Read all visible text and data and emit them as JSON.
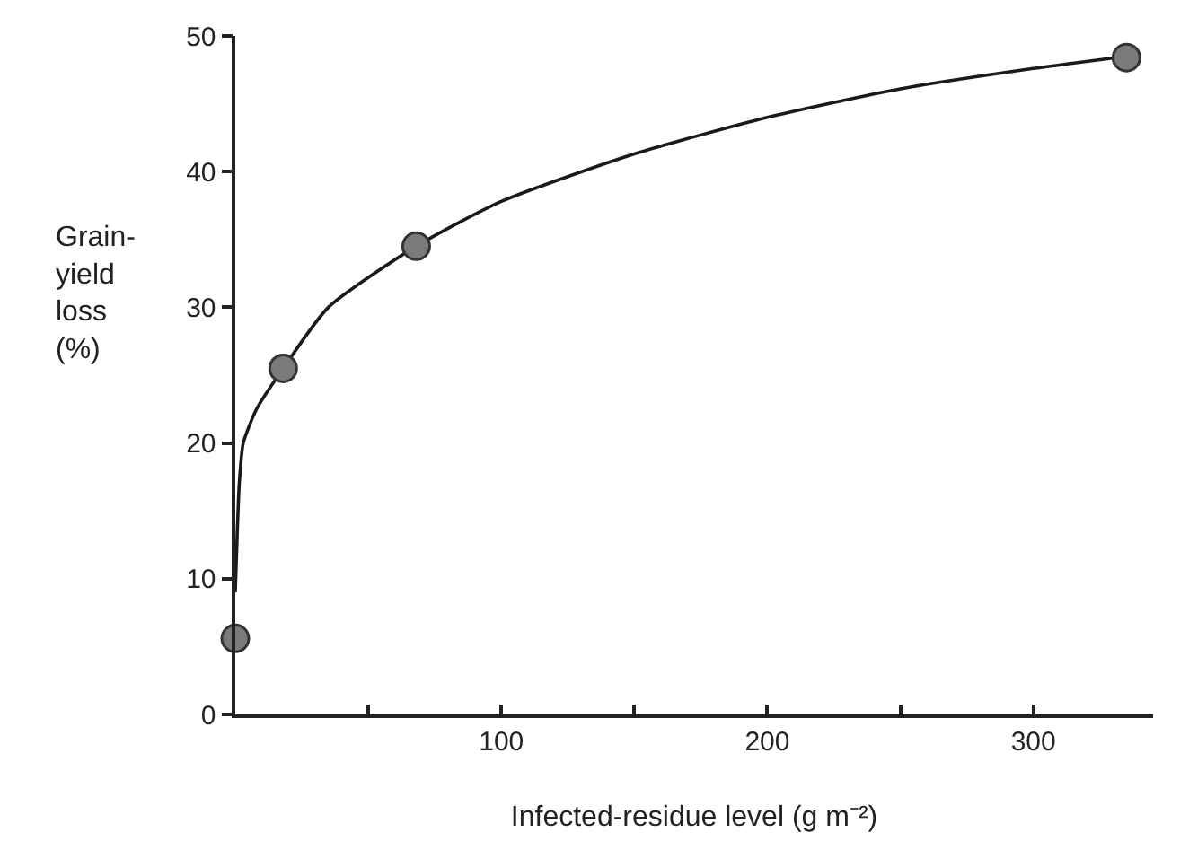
{
  "chart_data": {
    "type": "scatter",
    "xlabel": "Infected-residue level (g m⁻²)",
    "ylabel": "Grain-\nyield\nloss\n(%)",
    "xlim": [
      0,
      345
    ],
    "ylim": [
      0,
      50
    ],
    "xticks": [
      {
        "value": 50,
        "label": null
      },
      100,
      {
        "value": 150,
        "label": null
      },
      200,
      {
        "value": 250,
        "label": null
      },
      300
    ],
    "yticks": [
      0,
      10,
      20,
      30,
      40,
      50
    ],
    "series": [
      {
        "type": "line",
        "color": "#1a1a1a",
        "marker": "none",
        "line_style": "solid",
        "x": [
          0,
          0.5,
          1.5,
          3,
          8,
          18,
          35,
          68,
          100,
          150,
          200,
          250,
          300,
          335
        ],
        "values": [
          9,
          12,
          17,
          20,
          22.5,
          25.5,
          30,
          34.5,
          37.8,
          41.3,
          44,
          46.1,
          47.6,
          48.5
        ]
      },
      {
        "color": "#7a7a7a",
        "marker": "circle",
        "x": [
          0,
          18,
          68,
          335
        ],
        "values": [
          5.6,
          25.5,
          34.5,
          48.4
        ]
      }
    ]
  }
}
